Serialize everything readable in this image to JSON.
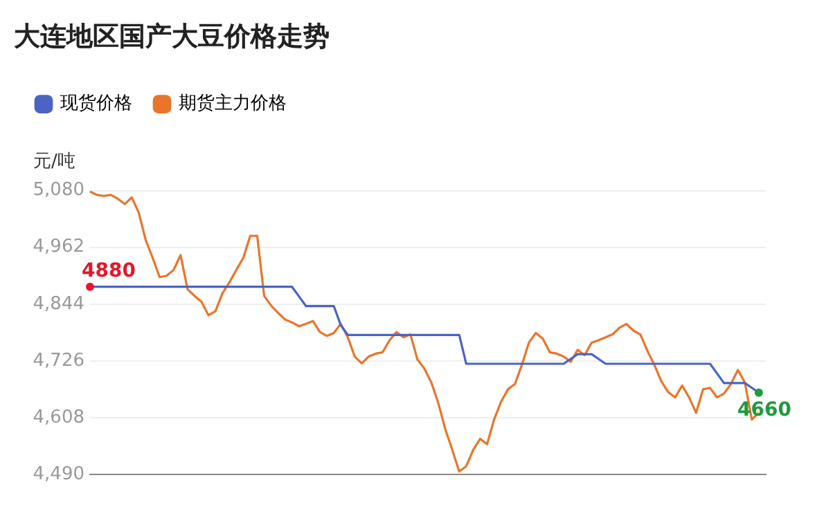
{
  "chart_data": {
    "type": "line",
    "title": "大连地区国产大豆价格走势",
    "ylabel": "元/吨",
    "categories": [
      null,
      null,
      null,
      null,
      null,
      null,
      null,
      null,
      null,
      null,
      null,
      null,
      null,
      null,
      null,
      null,
      null,
      null,
      null,
      null,
      null,
      null,
      null,
      null,
      null,
      null,
      null,
      null,
      null,
      null,
      null,
      null,
      null,
      null,
      null,
      null,
      null,
      null,
      null,
      null,
      null,
      null,
      null,
      null,
      null,
      null,
      null,
      null,
      null,
      null,
      null,
      null,
      null,
      null,
      null,
      null,
      null,
      null,
      null,
      null,
      null,
      null,
      null,
      null,
      null,
      null,
      null,
      null,
      null,
      null,
      null,
      null,
      null,
      null,
      null,
      null,
      null,
      null,
      null,
      null,
      null,
      null,
      null,
      null,
      null,
      null,
      null,
      null,
      null,
      null,
      null,
      null,
      null,
      null,
      null,
      null,
      null,
      null
    ],
    "series": [
      {
        "name": "现货价格",
        "color": "#4a63c4",
        "values": [
          4880,
          4880,
          4880,
          4880,
          4880,
          4880,
          4880,
          4880,
          4880,
          4880,
          4880,
          4880,
          4880,
          4880,
          4880,
          4880,
          4880,
          4880,
          4880,
          4880,
          4880,
          4880,
          4880,
          4880,
          4880,
          4880,
          4880,
          4880,
          4880,
          4880,
          4860,
          4840,
          4840,
          4840,
          4840,
          4840,
          4800,
          4780,
          4780,
          4780,
          4780,
          4780,
          4780,
          4780,
          4780,
          4780,
          4780,
          4780,
          4780,
          4780,
          4780,
          4780,
          4780,
          4780,
          4720,
          4720,
          4720,
          4720,
          4720,
          4720,
          4720,
          4720,
          4720,
          4720,
          4720,
          4720,
          4720,
          4720,
          4720,
          4730,
          4740,
          4740,
          4740,
          4730,
          4720,
          4720,
          4720,
          4720,
          4720,
          4720,
          4720,
          4720,
          4720,
          4720,
          4720,
          4720,
          4720,
          4720,
          4720,
          4720,
          4700,
          4680,
          4680,
          4680,
          4680,
          4670,
          4660,
          null
        ],
        "value_labels": [
          "4880",
          null,
          null,
          null,
          null,
          null,
          null,
          null,
          null,
          null,
          null,
          null,
          null,
          null,
          null,
          null,
          null,
          null,
          null,
          null,
          null,
          null,
          null,
          null,
          null,
          null,
          null,
          null,
          null,
          null,
          null,
          null,
          null,
          null,
          null,
          null,
          null,
          null,
          null,
          null,
          null,
          null,
          null,
          null,
          null,
          null,
          null,
          null,
          null,
          null,
          null,
          null,
          null,
          null,
          null,
          null,
          null,
          null,
          null,
          null,
          null,
          null,
          null,
          null,
          null,
          null,
          null,
          null,
          null,
          null,
          null,
          null,
          null,
          null,
          null,
          null,
          null,
          null,
          null,
          null,
          null,
          null,
          null,
          null,
          null,
          null,
          null,
          null,
          null,
          null,
          null,
          null,
          null,
          null,
          null,
          null,
          "4660",
          null
        ]
      },
      {
        "name": "期货主力价格",
        "color": "#e8752a",
        "values": [
          5078,
          5071,
          5069,
          5071,
          5063,
          5052,
          5066,
          5034,
          4977,
          4940,
          4900,
          4903,
          4915,
          4946,
          4875,
          4861,
          4849,
          4821,
          4829,
          4866,
          4889,
          4915,
          4940,
          4986,
          4986,
          4861,
          4841,
          4826,
          4812,
          4806,
          4798,
          4803,
          4809,
          4786,
          4778,
          4784,
          4803,
          4775,
          4735,
          4721,
          4735,
          4741,
          4744,
          4769,
          4786,
          4775,
          4781,
          4729,
          4710,
          4681,
          4638,
          4584,
          4541,
          4496,
          4507,
          4541,
          4564,
          4553,
          4604,
          4641,
          4667,
          4678,
          4718,
          4764,
          4784,
          4772,
          4744,
          4741,
          4735,
          4724,
          4749,
          4738,
          4764,
          4769,
          4775,
          4781,
          4795,
          4803,
          4789,
          4781,
          4747,
          4718,
          4684,
          4661,
          4650,
          4675,
          4650,
          4618,
          4667,
          4670,
          4650,
          4658,
          4678,
          4707,
          4681,
          4604,
          4618,
          null
        ]
      }
    ],
    "ylim": [
      4490,
      5080
    ],
    "yticks": [
      {
        "value": 4490,
        "label": "4,490"
      },
      {
        "value": 4608,
        "label": "4,608"
      },
      {
        "value": 4726,
        "label": "4,726"
      },
      {
        "value": 4844,
        "label": "4,844"
      },
      {
        "value": 4962,
        "label": "4,962"
      },
      {
        "value": 5080,
        "label": "5,080"
      }
    ],
    "grid": "y",
    "legend": "top left",
    "tick_labels": "y"
  }
}
